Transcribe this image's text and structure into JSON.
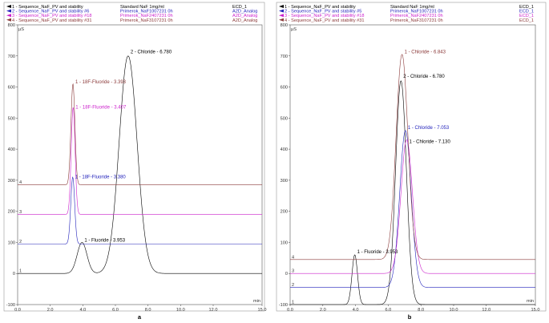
{
  "chart_data": [
    {
      "type": "line",
      "panel_label": "a",
      "ylabel": "µS",
      "xlabel": "min",
      "xlim": [
        0,
        15
      ],
      "ylim": [
        -100,
        800
      ],
      "xticks": [
        "0.0",
        "2.0",
        "4.0",
        "6.0",
        "8.0",
        "10.0",
        "12.0",
        "15.0"
      ],
      "yticks": [
        "-100",
        "0",
        "100",
        "200",
        "300",
        "400",
        "500",
        "600",
        "700",
        "800"
      ],
      "legend": {
        "placement": "top",
        "rows": [
          {
            "num": "1",
            "name": "Sequence_NaF_PV and stability",
            "sample": "Standard NaF 1mg/ml",
            "detector": "ECD_1",
            "color": "#000000"
          },
          {
            "num": "2",
            "name": "Sequence_NaF_PV and stability #6",
            "sample": "Primerok_NaF1007231 0h",
            "detector": "A2D_Analog",
            "color": "#2222bb"
          },
          {
            "num": "3",
            "name": "Sequence_NaF_PV and stability #18",
            "sample": "Primerok_NaF2407231 0h",
            "detector": "A2D_Analog",
            "color": "#cc22cc"
          },
          {
            "num": "4",
            "name": "Sequence_NaF_PV and stability #31",
            "sample": "Primerok_NaF3107231 0h",
            "detector": "A2D_Analog",
            "color": "#8b3a3a"
          }
        ]
      },
      "series": [
        {
          "trace": "1",
          "color": "#000000",
          "baseline": 0,
          "peaks": [
            {
              "t": 3.953,
              "h": 100,
              "w": 0.3
            },
            {
              "t": 6.78,
              "h": 700,
              "w": 0.55
            }
          ]
        },
        {
          "trace": "2",
          "color": "#2222bb",
          "baseline": 95,
          "peaks": [
            {
              "t": 3.38,
              "h": 215,
              "w": 0.12
            }
          ]
        },
        {
          "trace": "3",
          "color": "#cc22cc",
          "baseline": 190,
          "peaks": [
            {
              "t": 3.407,
              "h": 345,
              "w": 0.12
            }
          ]
        },
        {
          "trace": "4",
          "color": "#8b3a3a",
          "baseline": 285,
          "peaks": [
            {
              "t": 3.393,
              "h": 325,
              "w": 0.12
            }
          ]
        }
      ],
      "annotations": [
        {
          "text": "2 - Chloride - 6.780",
          "t": 6.78,
          "y": 708,
          "color": "#000000"
        },
        {
          "text": "1 - 18F-Fluoride - 3.393",
          "t": 3.393,
          "y": 612,
          "color": "#8b3a3a"
        },
        {
          "text": "1 - 18F-Fluoride - 3.407",
          "t": 3.407,
          "y": 530,
          "color": "#cc22cc"
        },
        {
          "text": "1 - 18F-Fluoride - 3.380",
          "t": 3.38,
          "y": 306,
          "color": "#2222bb"
        },
        {
          "text": "1 - Fluoride - 3.953",
          "t": 3.953,
          "y": 102,
          "color": "#000000"
        }
      ]
    },
    {
      "type": "line",
      "panel_label": "b",
      "ylabel": "µS",
      "xlabel": "min",
      "xlim": [
        0,
        15
      ],
      "ylim": [
        -100,
        800
      ],
      "xticks": [
        "0.0",
        "2.0",
        "4.0",
        "6.0",
        "8.0",
        "10.0",
        "12.0",
        "15.0"
      ],
      "yticks": [
        "-100",
        "0",
        "100",
        "200",
        "300",
        "400",
        "500",
        "600",
        "700",
        "800"
      ],
      "legend": {
        "placement": "top",
        "rows": [
          {
            "num": "1",
            "name": "Sequence_NaF_PV and stability",
            "sample": "Standard NaF 1mg/ml",
            "detector": "ECD_1",
            "color": "#000000"
          },
          {
            "num": "2",
            "name": "Sequence_NaF_PV and stability #5",
            "sample": "Primerok_NaF1007231 0h",
            "detector": "ECD_1",
            "color": "#2222bb"
          },
          {
            "num": "3",
            "name": "Sequence_NaF_PV and stability #18",
            "sample": "Primerok_NaF2407231 0h",
            "detector": "ECD_1",
            "color": "#cc22cc"
          },
          {
            "num": "4",
            "name": "Sequence_NaF_PV and stability #31",
            "sample": "Primerok_NaF3107231 0h",
            "detector": "ECD_1",
            "color": "#8b3a3a"
          }
        ]
      },
      "series": [
        {
          "trace": "1",
          "color": "#000000",
          "baseline": -100,
          "peaks": [
            {
              "t": 3.953,
              "h": 160,
              "w": 0.17
            },
            {
              "t": 6.78,
              "h": 720,
              "w": 0.33
            }
          ]
        },
        {
          "trace": "2",
          "color": "#2222bb",
          "baseline": -45,
          "peaks": [
            {
              "t": 7.053,
              "h": 505,
              "w": 0.35
            }
          ]
        },
        {
          "trace": "3",
          "color": "#cc22cc",
          "baseline": 0,
          "peaks": [
            {
              "t": 7.13,
              "h": 430,
              "w": 0.35
            }
          ]
        },
        {
          "trace": "4",
          "color": "#8b3a3a",
          "baseline": 45,
          "peaks": [
            {
              "t": 6.843,
              "h": 660,
              "w": 0.36
            }
          ]
        }
      ],
      "annotations": [
        {
          "text": "1 - Chloride - 6.843",
          "t": 6.843,
          "y": 708,
          "color": "#8b3a3a"
        },
        {
          "text": "2 - Chloride - 6.780",
          "t": 6.78,
          "y": 630,
          "color": "#000000"
        },
        {
          "text": "1 - Chloride - 7.053",
          "t": 7.053,
          "y": 465,
          "color": "#2222bb"
        },
        {
          "text": "1 - Chloride - 7.130",
          "t": 7.13,
          "y": 420,
          "color": "#000000"
        },
        {
          "text": "1 - Fluoride - 3.953",
          "t": 3.953,
          "y": 65,
          "color": "#000000"
        }
      ]
    }
  ]
}
